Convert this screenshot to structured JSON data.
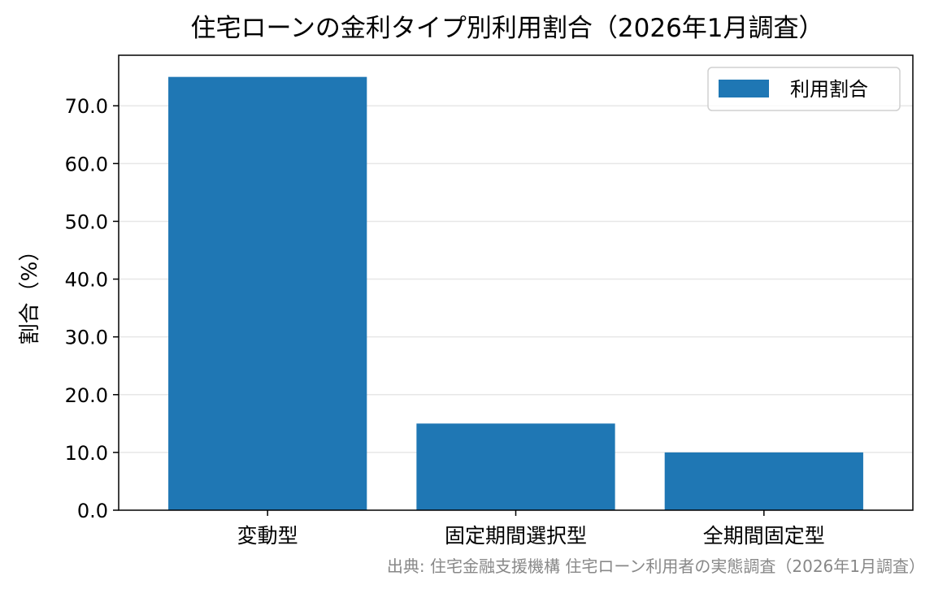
{
  "chart_data": {
    "type": "bar",
    "title": "住宅ローンの金利タイプ別利用割合（2026年1月調査）",
    "xlabel": "",
    "ylabel": "割合（%）",
    "categories": [
      "変動型",
      "固定期間選択型",
      "全期間固定型"
    ],
    "series": [
      {
        "name": "利用割合",
        "values": [
          75.0,
          15.0,
          10.0
        ],
        "color": "#1f77b4"
      }
    ],
    "ylim": [
      0,
      78.75
    ],
    "yticks": [
      0,
      10,
      20,
      30,
      40,
      50,
      60,
      70
    ],
    "ytick_labels": [
      "0.0",
      "10.0",
      "20.0",
      "30.0",
      "40.0",
      "50.0",
      "60.0",
      "70.0"
    ],
    "grid": "y",
    "legend": "upper right",
    "source": "出典: 住宅金融支援機構 住宅ローン利用者の実態調査（2026年1月調査）",
    "source_color": "#888888"
  }
}
